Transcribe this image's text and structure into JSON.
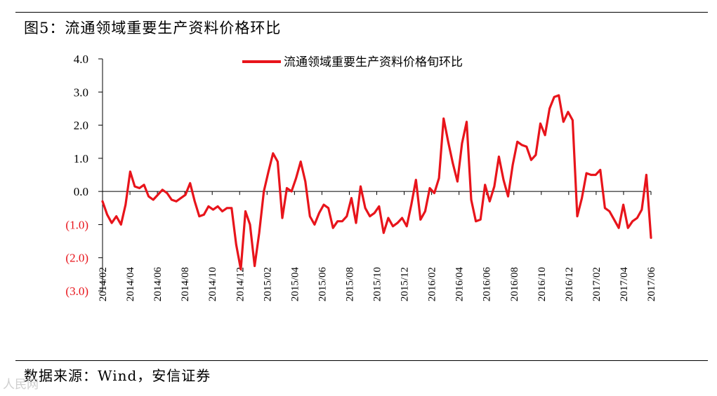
{
  "title": "图5：流通领域重要生产资料价格环比",
  "source": "数据来源：Wind，安信证券",
  "watermark": "人民网",
  "colors": {
    "line": "#e8141b",
    "negative_tick": "#e8141b",
    "axis": "#000000"
  },
  "chart_data": {
    "type": "line",
    "title": "图5：流通领域重要生产资料价格环比",
    "xlabel": "",
    "ylabel": "",
    "ylim": [
      -3.0,
      4.0
    ],
    "yticks": [
      4.0,
      3.0,
      2.0,
      1.0,
      0.0,
      -1.0,
      -2.0,
      -3.0
    ],
    "ytick_labels": [
      "4.0",
      "3.0",
      "2.0",
      "1.0",
      "0.0",
      "(1.0)",
      "(2.0)",
      "(3.0)"
    ],
    "xticks": [
      "2014/02",
      "2014/04",
      "2014/06",
      "2014/08",
      "2014/10",
      "2014/12",
      "2015/02",
      "2015/04",
      "2015/06",
      "2015/08",
      "2015/10",
      "2015/12",
      "2016/02",
      "2016/04",
      "2016/06",
      "2016/08",
      "2016/10",
      "2016/12",
      "2017/02",
      "2017/04",
      "2017/06"
    ],
    "grid": false,
    "legend": "top-center",
    "series": [
      {
        "name": "流通领域重要生产资料价格旬环比",
        "values": [
          -0.3,
          -0.7,
          -0.95,
          -0.75,
          -1.0,
          -0.4,
          0.6,
          0.15,
          0.1,
          0.2,
          -0.15,
          -0.25,
          -0.1,
          0.05,
          -0.05,
          -0.25,
          -0.3,
          -0.2,
          -0.1,
          0.25,
          -0.3,
          -0.75,
          -0.7,
          -0.45,
          -0.55,
          -0.45,
          -0.6,
          -0.5,
          -0.5,
          -1.6,
          -2.35,
          -0.6,
          -1.0,
          -2.25,
          -1.25,
          0.0,
          0.6,
          1.15,
          0.9,
          -0.8,
          0.1,
          0.0,
          0.4,
          0.9,
          0.3,
          -0.75,
          -1.0,
          -0.65,
          -0.4,
          -0.5,
          -1.1,
          -0.9,
          -0.9,
          -0.75,
          -0.2,
          -0.95,
          0.15,
          -0.5,
          -0.75,
          -0.65,
          -0.45,
          -1.25,
          -0.8,
          -1.05,
          -0.95,
          -0.8,
          -1.05,
          -0.4,
          0.35,
          -0.85,
          -0.6,
          0.1,
          -0.05,
          0.4,
          2.2,
          1.5,
          0.85,
          0.3,
          1.45,
          2.1,
          -0.25,
          -0.9,
          -0.85,
          0.2,
          -0.3,
          0.15,
          1.05,
          0.35,
          -0.15,
          0.8,
          1.5,
          1.4,
          1.35,
          0.95,
          1.1,
          2.05,
          1.7,
          2.5,
          2.85,
          2.9,
          2.1,
          2.4,
          2.15,
          -0.75,
          -0.2,
          0.55,
          0.5,
          0.5,
          0.65,
          -0.5,
          -0.6,
          -0.85,
          -1.1,
          -0.4,
          -1.1,
          -0.9,
          -0.8,
          -0.55,
          0.5,
          -1.4
        ]
      }
    ]
  }
}
